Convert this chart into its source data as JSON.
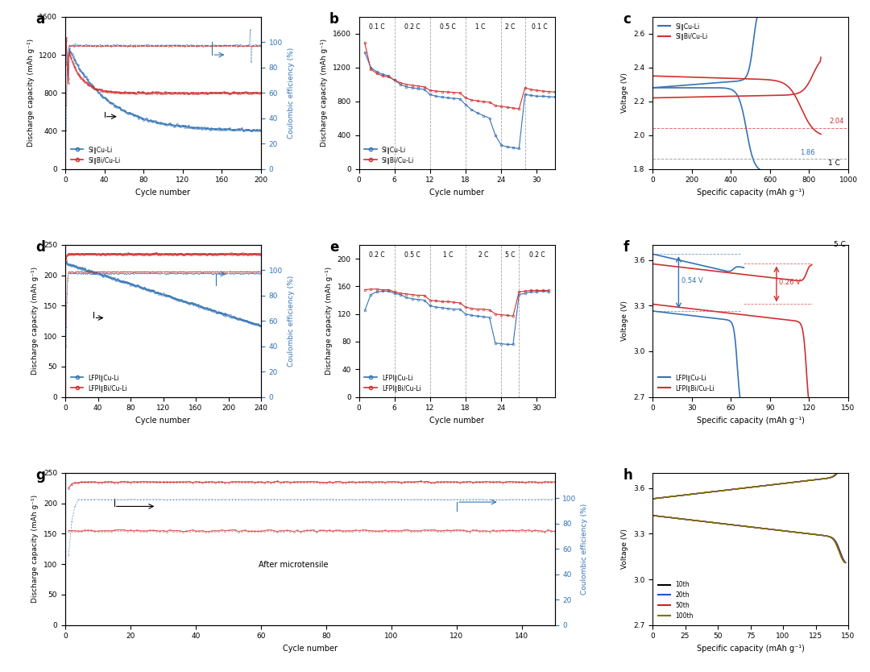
{
  "colors": {
    "blue": "#3473b5",
    "red": "#d03030"
  },
  "panel_a": {
    "xlabel": "Cycle number",
    "ylabel_left": "Discharge capacity (mAh g⁻¹)",
    "ylabel_right": "Coulombic efficiency (%)",
    "xlim": [
      0,
      200
    ],
    "ylim_left": [
      0,
      1600
    ],
    "ylim_right": [
      0,
      120
    ],
    "yticks_left": [
      0,
      400,
      800,
      1200,
      1600
    ],
    "yticks_right": [
      0,
      20,
      40,
      60,
      80,
      100
    ],
    "xticks": [
      0,
      40,
      80,
      120,
      160,
      200
    ],
    "legend": [
      "SI∥Cu-Li",
      "SI∥Bi/Cu-Li"
    ]
  },
  "panel_b": {
    "xlabel": "Cycle number",
    "ylabel": "Discharge capacity (mAh g⁻¹)",
    "xlim": [
      0,
      33
    ],
    "ylim": [
      0,
      1800
    ],
    "yticks": [
      0,
      400,
      800,
      1200,
      1600
    ],
    "xticks": [
      0,
      6,
      12,
      18,
      24,
      30
    ],
    "c_rates": [
      "0.1 C",
      "0.2 C",
      "0.5 C",
      "1 C",
      "2 C",
      "0.1 C"
    ],
    "vlines": [
      6,
      12,
      18,
      24,
      28
    ],
    "legend": [
      "SI∥Cu-Li",
      "SI∥Bi/Cu-Li"
    ]
  },
  "panel_c": {
    "xlabel": "Specific capacity (mAh g⁻¹)",
    "ylabel": "Voltage (V)",
    "xlim": [
      0,
      1000
    ],
    "ylim": [
      1.8,
      2.7
    ],
    "yticks": [
      1.8,
      2.0,
      2.2,
      2.4,
      2.6
    ],
    "xticks": [
      0,
      200,
      400,
      600,
      800,
      1000
    ],
    "hline_red": 2.04,
    "hline_blue": 1.86,
    "legend": [
      "SI∥Cu-Li",
      "SI∥Bi/Cu-Li"
    ]
  },
  "panel_d": {
    "xlabel": "Cycle number",
    "ylabel_left": "Discharge capacity (mAh g⁻¹)",
    "ylabel_right": "Coulombic efficiency (%)",
    "xlim": [
      0,
      240
    ],
    "ylim_left": [
      0,
      250
    ],
    "ylim_right": [
      0,
      120
    ],
    "yticks_left": [
      0,
      50,
      100,
      150,
      200,
      250
    ],
    "yticks_right": [
      0,
      20,
      40,
      60,
      80,
      100
    ],
    "xticks": [
      0,
      40,
      80,
      120,
      160,
      200,
      240
    ],
    "legend": [
      "LFPI∥Cu-Li",
      "LFPI∥Bi/Cu-Li"
    ]
  },
  "panel_e": {
    "xlabel": "Cycle number",
    "ylabel": "Discharge capacity (mAh g⁻¹)",
    "xlim": [
      0,
      33
    ],
    "ylim": [
      0,
      220
    ],
    "yticks": [
      0,
      40,
      80,
      120,
      160,
      200
    ],
    "xticks": [
      0,
      6,
      12,
      18,
      24,
      30
    ],
    "c_rates": [
      "0.2 C",
      "0.5 C",
      "1 C",
      "2 C",
      "5 C",
      "0.2 C"
    ],
    "vlines": [
      6,
      12,
      18,
      24,
      27
    ],
    "legend": [
      "LFPI∥Cu-Li",
      "LFPI∥Bi/Cu-Li"
    ]
  },
  "panel_f": {
    "xlabel": "Specific capacity (mAh g⁻¹)",
    "ylabel": "Voltage (V)",
    "xlim": [
      0,
      150
    ],
    "ylim": [
      2.7,
      3.7
    ],
    "yticks": [
      2.7,
      3.0,
      3.3,
      3.6
    ],
    "xticks": [
      0,
      30,
      60,
      90,
      120,
      150
    ],
    "legend": [
      "LFPI∥Cu-Li",
      "LFPI∥Bi/Cu-Li"
    ]
  },
  "panel_g": {
    "xlabel": "Cycle number",
    "ylabel_left": "Discharge capacity (mAh g⁻¹)",
    "ylabel_right": "Coulombic efficiency (%)",
    "xlim": [
      0,
      150
    ],
    "ylim_left": [
      0,
      250
    ],
    "ylim_right": [
      0,
      120
    ],
    "yticks_left": [
      0,
      50,
      100,
      150,
      200,
      250
    ],
    "yticks_right": [
      0,
      20,
      40,
      60,
      80,
      100
    ],
    "xticks": [
      0,
      20,
      40,
      60,
      80,
      100,
      120,
      140
    ],
    "annotation": "After microtensile"
  },
  "panel_h": {
    "xlabel": "Specific capacity (mAh g⁻¹)",
    "ylabel": "Voltage (V)",
    "xlim": [
      0,
      150
    ],
    "ylim": [
      2.7,
      3.7
    ],
    "yticks": [
      2.7,
      3.0,
      3.3,
      3.6
    ],
    "xticks": [
      0,
      25,
      50,
      75,
      100,
      125,
      150
    ],
    "legend": [
      "10th",
      "20th",
      "50th",
      "100th"
    ],
    "legend_colors": [
      "#000000",
      "#2255cc",
      "#cc2222",
      "#777700"
    ]
  }
}
